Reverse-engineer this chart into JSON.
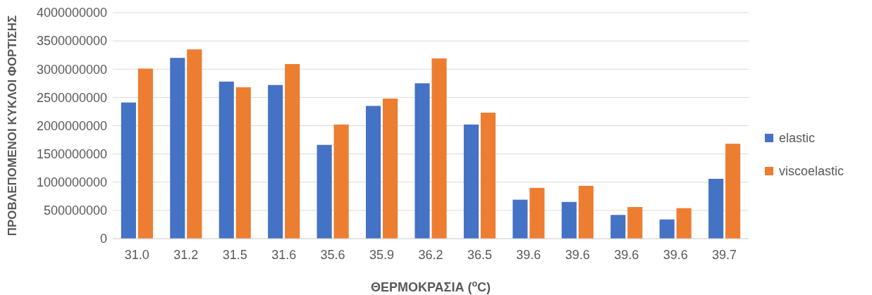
{
  "chart_data": {
    "type": "bar",
    "xlabel": "ΘΕΡΜΟΚΡΑΣΙΑ ($^{o}$C)",
    "ylabel": "ΠΡΟΒΛΕΠΟΜΕΝΟΙ ΚΥΚΛΟΙ ΦΟΡΤΙΣΗΣ",
    "categories": [
      "31.0",
      "31.2",
      "31.5",
      "31.6",
      "35.6",
      "35.9",
      "36.2",
      "36.5",
      "39.6",
      "39.6",
      "39.6",
      "39.6",
      "39.7"
    ],
    "series": [
      {
        "name": "elastic",
        "color": "#4472c4",
        "values": [
          2410000000,
          3200000000,
          2780000000,
          2720000000,
          1660000000,
          2350000000,
          2750000000,
          2020000000,
          690000000,
          650000000,
          420000000,
          340000000,
          1060000000
        ]
      },
      {
        "name": "viscoelastic",
        "color": "#ed7d31",
        "values": [
          3010000000,
          3350000000,
          2680000000,
          3090000000,
          2020000000,
          2480000000,
          3190000000,
          2230000000,
          900000000,
          935000000,
          560000000,
          540000000,
          1680000000
        ]
      }
    ],
    "ylim": [
      0,
      4000000000
    ],
    "yticks": [
      0,
      500000000,
      1000000000,
      1500000000,
      2000000000,
      2500000000,
      3000000000,
      3500000000,
      4000000000
    ],
    "grid": "y",
    "legend": "right"
  }
}
